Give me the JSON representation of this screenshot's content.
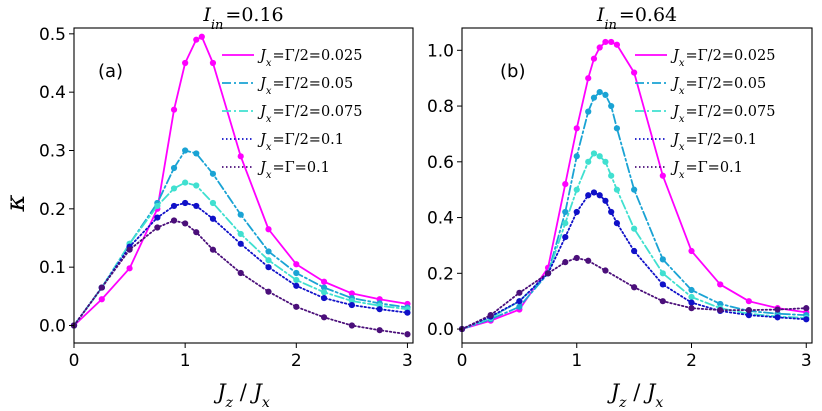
{
  "figure": {
    "y_label": "κ",
    "x_label": "J_z / J_x"
  },
  "chart_data": [
    {
      "type": "line",
      "panel_label": "(a)",
      "title": "I_in = 0.16",
      "title_text": {
        "main": "I",
        "sub": "in",
        "rest": "=0.16"
      },
      "xlabel": "Jz / Jx",
      "ylabel": "κ",
      "xlim": [
        0,
        3.05
      ],
      "ylim": [
        -0.03,
        0.51
      ],
      "xticks": [
        0,
        1,
        2,
        3
      ],
      "xtick_labels": [
        "0",
        "1",
        "2",
        "3"
      ],
      "yticks": [
        0.0,
        0.1,
        0.2,
        0.3,
        0.4,
        0.5
      ],
      "ytick_labels": [
        "0.0",
        "0.1",
        "0.2",
        "0.3",
        "0.4",
        "0.5"
      ],
      "legend_position": "top-right",
      "series": [
        {
          "name": "Jx=Γ/2=0.025",
          "label": {
            "rel": "Γ/2",
            "val": "0.025"
          },
          "color": "#ff00ff",
          "dash": "solid",
          "x": [
            0,
            0.25,
            0.5,
            0.75,
            0.9,
            1.0,
            1.1,
            1.15,
            1.25,
            1.5,
            1.75,
            2.0,
            2.25,
            2.5,
            2.75,
            3.0
          ],
          "y": [
            0.0,
            0.045,
            0.098,
            0.2,
            0.37,
            0.45,
            0.49,
            0.495,
            0.45,
            0.29,
            0.165,
            0.105,
            0.075,
            0.055,
            0.045,
            0.037
          ]
        },
        {
          "name": "Jx=Γ/2=0.05",
          "label": {
            "rel": "Γ/2",
            "val": "0.05"
          },
          "color": "#1aa3d4",
          "dash": "dashdot",
          "x": [
            0,
            0.25,
            0.5,
            0.75,
            0.9,
            1.0,
            1.1,
            1.25,
            1.5,
            1.75,
            2.0,
            2.25,
            2.5,
            2.75,
            3.0
          ],
          "y": [
            0.0,
            0.065,
            0.14,
            0.21,
            0.27,
            0.3,
            0.295,
            0.26,
            0.19,
            0.127,
            0.09,
            0.065,
            0.047,
            0.038,
            0.031
          ]
        },
        {
          "name": "Jx=Γ/2=0.075",
          "label": {
            "rel": "Γ/2",
            "val": "0.075"
          },
          "color": "#40e0d0",
          "dash": "dashdot",
          "x": [
            0,
            0.25,
            0.5,
            0.75,
            0.9,
            1.0,
            1.1,
            1.25,
            1.5,
            1.75,
            2.0,
            2.25,
            2.5,
            2.75,
            3.0
          ],
          "y": [
            0.0,
            0.065,
            0.14,
            0.205,
            0.235,
            0.245,
            0.24,
            0.21,
            0.157,
            0.112,
            0.078,
            0.057,
            0.042,
            0.034,
            0.028
          ]
        },
        {
          "name": "Jx=Γ/2=0.1",
          "label": {
            "rel": "Γ/2",
            "val": "0.1"
          },
          "color": "#1010c8",
          "dash": "dotted",
          "x": [
            0,
            0.25,
            0.5,
            0.75,
            0.9,
            1.0,
            1.1,
            1.25,
            1.5,
            1.75,
            2.0,
            2.25,
            2.5,
            2.75,
            3.0
          ],
          "y": [
            0.0,
            0.065,
            0.135,
            0.185,
            0.205,
            0.21,
            0.205,
            0.183,
            0.14,
            0.1,
            0.068,
            0.047,
            0.035,
            0.028,
            0.022
          ]
        },
        {
          "name": "Jx=Γ=0.1",
          "label": {
            "rel": "Γ",
            "val": "0.1"
          },
          "color": "#4b0f7a",
          "dash": "dotted",
          "x": [
            0,
            0.25,
            0.5,
            0.75,
            0.9,
            1.0,
            1.1,
            1.25,
            1.5,
            1.75,
            2.0,
            2.25,
            2.5,
            2.75,
            3.0
          ],
          "y": [
            0.0,
            0.065,
            0.13,
            0.168,
            0.18,
            0.175,
            0.16,
            0.13,
            0.09,
            0.058,
            0.032,
            0.014,
            0.0,
            -0.008,
            -0.015
          ]
        }
      ]
    },
    {
      "type": "line",
      "panel_label": "(b)",
      "title": "I_in = 0.64",
      "title_text": {
        "main": "I",
        "sub": "in",
        "rest": "=0.64"
      },
      "xlabel": "Jz / Jx",
      "ylabel": "κ",
      "xlim": [
        0,
        3.05
      ],
      "ylim": [
        -0.05,
        1.08
      ],
      "xticks": [
        0,
        1,
        2,
        3
      ],
      "xtick_labels": [
        "0",
        "1",
        "2",
        "3"
      ],
      "yticks": [
        0.0,
        0.2,
        0.4,
        0.6,
        0.8,
        1.0
      ],
      "ytick_labels": [
        "0.0",
        "0.2",
        "0.4",
        "0.6",
        "0.8",
        "1.0"
      ],
      "legend_position": "top-right",
      "series": [
        {
          "name": "Jx=Γ/2=0.025",
          "label": {
            "rel": "Γ/2",
            "val": "0.025"
          },
          "color": "#ff00ff",
          "dash": "solid",
          "x": [
            0,
            0.25,
            0.5,
            0.75,
            0.9,
            1.0,
            1.1,
            1.15,
            1.2,
            1.25,
            1.3,
            1.35,
            1.5,
            1.75,
            2.0,
            2.25,
            2.5,
            2.75,
            3.0
          ],
          "y": [
            0.0,
            0.03,
            0.07,
            0.22,
            0.52,
            0.72,
            0.9,
            0.97,
            1.01,
            1.03,
            1.03,
            1.02,
            0.92,
            0.55,
            0.28,
            0.16,
            0.1,
            0.075,
            0.06
          ]
        },
        {
          "name": "Jx=Γ/2=0.05",
          "label": {
            "rel": "Γ/2",
            "val": "0.05"
          },
          "color": "#1aa3d4",
          "dash": "dashdot",
          "x": [
            0,
            0.25,
            0.5,
            0.75,
            0.9,
            1.0,
            1.1,
            1.15,
            1.2,
            1.25,
            1.3,
            1.35,
            1.5,
            1.75,
            2.0,
            2.25,
            2.5,
            2.75,
            3.0
          ],
          "y": [
            0.0,
            0.035,
            0.08,
            0.2,
            0.42,
            0.62,
            0.78,
            0.83,
            0.85,
            0.84,
            0.8,
            0.72,
            0.5,
            0.25,
            0.14,
            0.09,
            0.065,
            0.055,
            0.05
          ]
        },
        {
          "name": "Jx=Γ/2=0.075",
          "label": {
            "rel": "Γ/2",
            "val": "0.075"
          },
          "color": "#40e0d0",
          "dash": "dashdot",
          "x": [
            0,
            0.25,
            0.5,
            0.75,
            0.9,
            1.0,
            1.1,
            1.15,
            1.2,
            1.25,
            1.3,
            1.35,
            1.5,
            1.75,
            2.0,
            2.25,
            2.5,
            2.75,
            3.0
          ],
          "y": [
            0.0,
            0.04,
            0.1,
            0.2,
            0.38,
            0.5,
            0.6,
            0.63,
            0.62,
            0.6,
            0.55,
            0.5,
            0.36,
            0.2,
            0.115,
            0.075,
            0.055,
            0.045,
            0.04
          ]
        },
        {
          "name": "Jx=Γ/2=0.1",
          "label": {
            "rel": "Γ/2",
            "val": "0.1"
          },
          "color": "#1010c8",
          "dash": "dotted",
          "x": [
            0,
            0.25,
            0.5,
            0.75,
            0.9,
            1.0,
            1.1,
            1.15,
            1.2,
            1.25,
            1.3,
            1.35,
            1.5,
            1.75,
            2.0,
            2.25,
            2.5,
            2.75,
            3.0
          ],
          "y": [
            0.0,
            0.045,
            0.1,
            0.2,
            0.33,
            0.42,
            0.48,
            0.49,
            0.48,
            0.46,
            0.42,
            0.38,
            0.28,
            0.16,
            0.095,
            0.065,
            0.05,
            0.042,
            0.035
          ]
        },
        {
          "name": "Jx=Γ=0.1",
          "label": {
            "rel": "Γ",
            "val": "0.1"
          },
          "color": "#4b0f7a",
          "dash": "dotted",
          "x": [
            0,
            0.25,
            0.5,
            0.75,
            0.9,
            1.0,
            1.1,
            1.25,
            1.5,
            1.75,
            2.0,
            2.25,
            2.5,
            2.75,
            3.0
          ],
          "y": [
            0.0,
            0.05,
            0.13,
            0.2,
            0.24,
            0.255,
            0.245,
            0.21,
            0.15,
            0.1,
            0.075,
            0.068,
            0.068,
            0.07,
            0.075
          ]
        }
      ]
    }
  ]
}
